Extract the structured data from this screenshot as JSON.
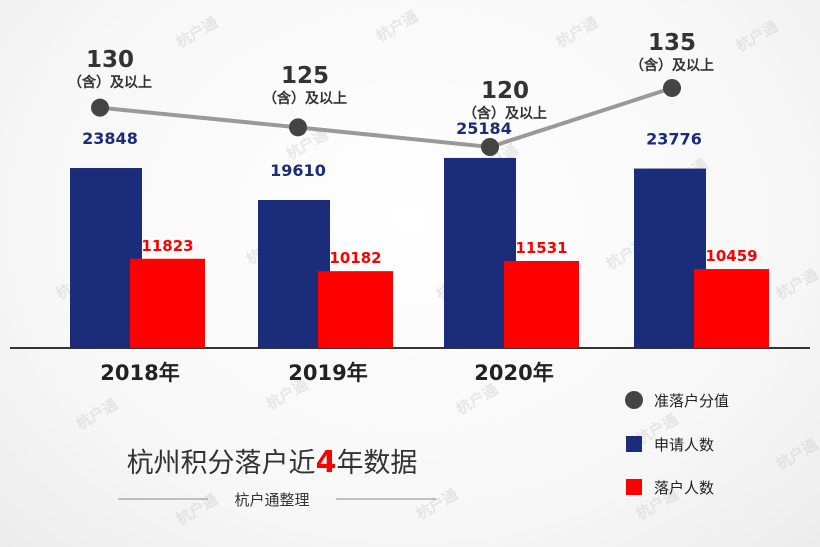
{
  "chart_data": {
    "type": "bar",
    "title": "杭州积分落户近4年数据",
    "title_parts": {
      "before": "杭州积分落户近",
      "highlight": "4",
      "after": "年数据"
    },
    "subtitle": "杭户通整理",
    "watermark": "杭户通",
    "categories": [
      "2018年",
      "2019年",
      "2020年",
      ""
    ],
    "series": [
      {
        "name": "申请人数",
        "type": "bar",
        "color": "#1a2c7a",
        "values": [
          23848,
          19610,
          25184,
          23776
        ]
      },
      {
        "name": "落户人数",
        "type": "bar",
        "color": "#ff0000",
        "values": [
          11823,
          10182,
          11531,
          10459
        ]
      }
    ],
    "score_series": {
      "name": "准落户分值",
      "type": "line",
      "color": "#444444",
      "line_color": "#999999",
      "values": [
        130,
        125,
        120,
        135
      ],
      "labels": [
        "130",
        "125",
        "120",
        "135"
      ],
      "sublabel": "（含）及以上"
    },
    "legend": {
      "placement": "bottom-right",
      "items": [
        {
          "label": "准落户分值",
          "shape": "circle",
          "color": "#444444"
        },
        {
          "label": "申请人数",
          "shape": "square",
          "color": "#1a2c7a"
        },
        {
          "label": "落户人数",
          "shape": "square",
          "color": "#ff0000"
        }
      ]
    },
    "colors": {
      "applicants": "#1a2c7a",
      "settled": "#ff0000",
      "title_highlight": "#ff0000"
    }
  }
}
